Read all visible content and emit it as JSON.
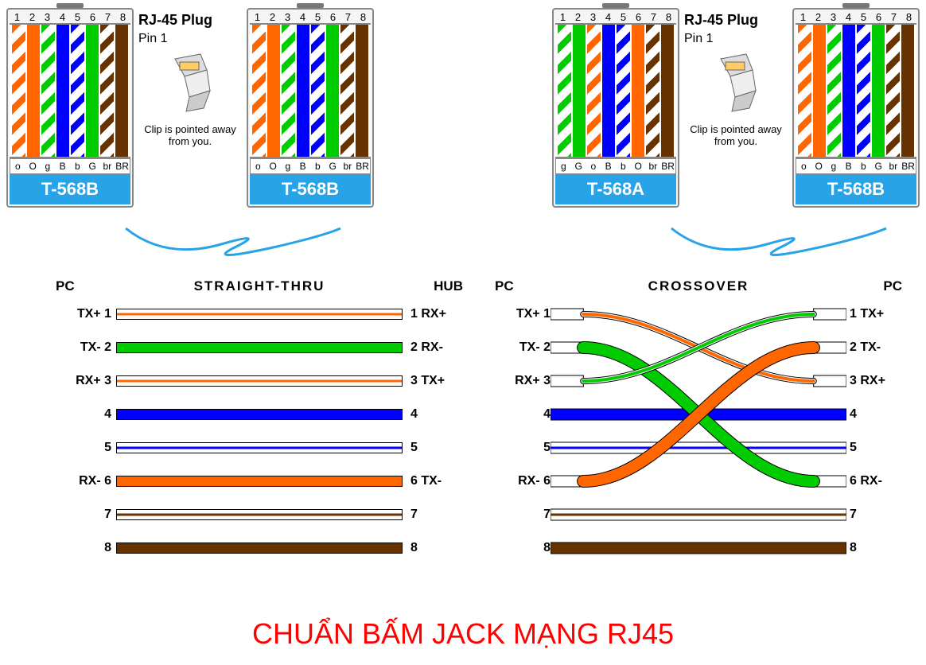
{
  "title": "CHUẨN BẤM JACK MẠNG RJ45",
  "title_color": "#ff0000",
  "info": {
    "title": "RJ-45 Plug",
    "subtitle": "Pin 1",
    "caption": "Clip is pointed away from you."
  },
  "colors": {
    "orange": "#ff6600",
    "green": "#00cc00",
    "blue": "#0000ff",
    "brown": "#663300",
    "white": "#ffffff",
    "std_bg": "#29a3e8",
    "cable": "#29a3e8",
    "plug_border": "#888888",
    "black": "#000000"
  },
  "pin_numbers": [
    "1",
    "2",
    "3",
    "4",
    "5",
    "6",
    "7",
    "8"
  ],
  "standards": {
    "t568b": {
      "label": "T-568B",
      "codes": [
        "o",
        "O",
        "g",
        "B",
        "b",
        "G",
        "br",
        "BR"
      ],
      "wires": [
        {
          "type": "stripe",
          "color": "#ff6600"
        },
        {
          "type": "solid",
          "color": "#ff6600"
        },
        {
          "type": "stripe",
          "color": "#00cc00"
        },
        {
          "type": "solid",
          "color": "#0000ff"
        },
        {
          "type": "stripe",
          "color": "#0000ff"
        },
        {
          "type": "solid",
          "color": "#00cc00"
        },
        {
          "type": "stripe",
          "color": "#663300"
        },
        {
          "type": "solid",
          "color": "#663300"
        }
      ]
    },
    "t568a": {
      "label": "T-568A",
      "codes": [
        "g",
        "G",
        "o",
        "B",
        "b",
        "O",
        "br",
        "BR"
      ],
      "wires": [
        {
          "type": "stripe",
          "color": "#00cc00"
        },
        {
          "type": "solid",
          "color": "#00cc00"
        },
        {
          "type": "stripe",
          "color": "#ff6600"
        },
        {
          "type": "solid",
          "color": "#0000ff"
        },
        {
          "type": "stripe",
          "color": "#0000ff"
        },
        {
          "type": "solid",
          "color": "#ff6600"
        },
        {
          "type": "stripe",
          "color": "#663300"
        },
        {
          "type": "solid",
          "color": "#663300"
        }
      ]
    }
  },
  "plugs_layout": [
    {
      "std": "t568b"
    },
    {
      "std": "t568b"
    },
    {
      "std": "t568a"
    },
    {
      "std": "t568b"
    }
  ],
  "straight": {
    "left_header": "PC",
    "title": "STRAIGHT-THRU",
    "right_header": "HUB",
    "rows": [
      {
        "l": "TX+ 1",
        "r": "1 RX+",
        "fill": "#ffffff",
        "stripe": "#ff6600",
        "mode": "stripe"
      },
      {
        "l": "TX- 2",
        "r": "2 RX-",
        "fill": "#00cc00",
        "mode": "solid"
      },
      {
        "l": "RX+ 3",
        "r": "3 TX+",
        "fill": "#ffffff",
        "stripe": "#00cc00",
        "mode": "stripe-thin",
        "thin": "#ff6600"
      },
      {
        "l": "4",
        "r": "4",
        "fill": "#0000ff",
        "mode": "solid"
      },
      {
        "l": "5",
        "r": "5",
        "fill": "#ffffff",
        "stripe": "#0000ff",
        "mode": "stripe"
      },
      {
        "l": "RX- 6",
        "r": "6 TX-",
        "fill": "#ff6600",
        "mode": "solid"
      },
      {
        "l": "7",
        "r": "7",
        "fill": "#ffffff",
        "stripe": "#663300",
        "mode": "stripe"
      },
      {
        "l": "8",
        "r": "8",
        "fill": "#663300",
        "mode": "solid"
      }
    ]
  },
  "crossover": {
    "left_header": "PC",
    "title": "CROSSOVER",
    "right_header": "PC",
    "rows_left": [
      {
        "l": "TX+ 1",
        "r": "1 TX+"
      },
      {
        "l": "TX- 2",
        "r": "2 TX-"
      },
      {
        "l": "RX+ 3",
        "r": "3 RX+"
      },
      {
        "l": "4",
        "r": "4"
      },
      {
        "l": "5",
        "r": "5"
      },
      {
        "l": "RX- 6",
        "r": "6 RX-"
      },
      {
        "l": "7",
        "r": "7"
      },
      {
        "l": "8",
        "r": "8"
      }
    ],
    "cross_pairs": [
      {
        "from": 1,
        "to": 3,
        "color": "#ff6600",
        "w": 4,
        "stripe": true
      },
      {
        "from": 2,
        "to": 6,
        "color": "#00cc00",
        "w": 14,
        "stripe": false
      },
      {
        "from": 3,
        "to": 1,
        "color": "#00cc00",
        "w": 4,
        "stripe": true
      },
      {
        "from": 6,
        "to": 2,
        "color": "#ff6600",
        "w": 14,
        "stripe": false
      }
    ],
    "straight_lines": [
      {
        "pin": 4,
        "fill": "#0000ff",
        "mode": "solid"
      },
      {
        "pin": 5,
        "fill": "#ffffff",
        "stripe": "#0000ff",
        "mode": "stripe"
      },
      {
        "pin": 7,
        "fill": "#ffffff",
        "stripe": "#663300",
        "mode": "stripe"
      },
      {
        "pin": 8,
        "fill": "#663300",
        "mode": "solid"
      }
    ]
  },
  "typography": {
    "title_fontsize": 36,
    "std_label_fontsize": 22,
    "info_title_fontsize": 18,
    "wiring_header_fontsize": 17,
    "line_label_fontsize": 16
  }
}
